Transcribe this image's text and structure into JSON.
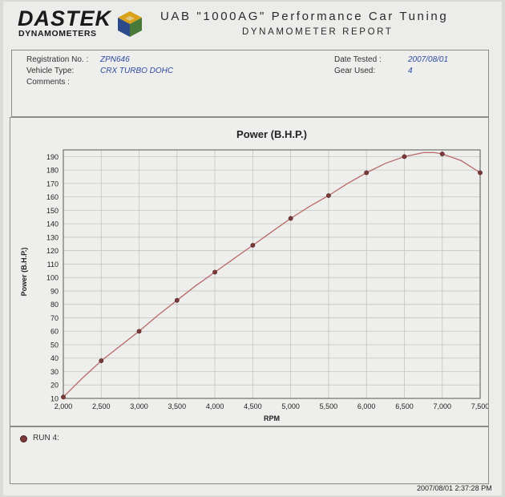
{
  "header": {
    "logo_text": "DASTEK",
    "logo_sub": "DYNAMOMETERS",
    "title": "UAB \"1000AG\" Performance Car Tuning",
    "subtitle": "DYNAMOMETER REPORT"
  },
  "info": {
    "registration_label": "Registration No. :",
    "registration_value": "ZPN646",
    "vehicle_label": "Vehicle Type:",
    "vehicle_value": "CRX TURBO DOHC",
    "comments_label": "Comments :",
    "date_label": "Date Tested :",
    "date_value": "2007/08/01",
    "gear_label": "Gear Used:",
    "gear_value": "4"
  },
  "colors": {
    "line": "#b86a6a",
    "marker": "#7a3a3a",
    "grid": "#c4c6c4",
    "label_blue": "#2c4aa0"
  },
  "chart_data": {
    "type": "line",
    "title": "Power (B.H.P.)",
    "xlabel": "RPM",
    "ylabel": "Power (B.H.P.)",
    "xlim": [
      2000,
      7500
    ],
    "ylim": [
      10,
      195
    ],
    "x_ticks": [
      2000,
      2500,
      3000,
      3500,
      4000,
      4500,
      5000,
      5500,
      6000,
      6500,
      7000,
      7500
    ],
    "x_tick_labels": [
      "2,000",
      "2,500",
      "3,000",
      "3,500",
      "4,000",
      "4,500",
      "5,000",
      "5,500",
      "6,000",
      "6,500",
      "7,000",
      "7,500"
    ],
    "y_ticks": [
      10,
      20,
      30,
      40,
      50,
      60,
      70,
      80,
      90,
      100,
      110,
      120,
      130,
      140,
      150,
      160,
      170,
      180,
      190
    ],
    "grid": true,
    "series": [
      {
        "name": "RUN 4:",
        "x": [
          2000,
          2500,
          3000,
          3500,
          4000,
          4500,
          5000,
          5500,
          6000,
          6500,
          7000,
          7500
        ],
        "y": [
          11,
          38,
          60,
          83,
          104,
          124,
          144,
          161,
          178,
          190,
          192,
          178
        ],
        "curve_x": [
          2000,
          2250,
          2500,
          2750,
          3000,
          3250,
          3500,
          3750,
          4000,
          4250,
          4500,
          4750,
          5000,
          5250,
          5500,
          5750,
          6000,
          6250,
          6500,
          6750,
          6900,
          7000,
          7250,
          7500
        ],
        "curve_y": [
          11,
          25,
          38,
          49,
          60,
          72,
          83,
          94,
          104,
          114,
          124,
          134,
          144,
          153,
          161,
          170,
          178,
          185,
          190,
          193,
          193,
          192,
          187,
          178
        ]
      }
    ]
  },
  "legend": {
    "label": "RUN 4:"
  },
  "footer": {
    "timestamp": "2007/08/01 2:37:28 PM"
  }
}
